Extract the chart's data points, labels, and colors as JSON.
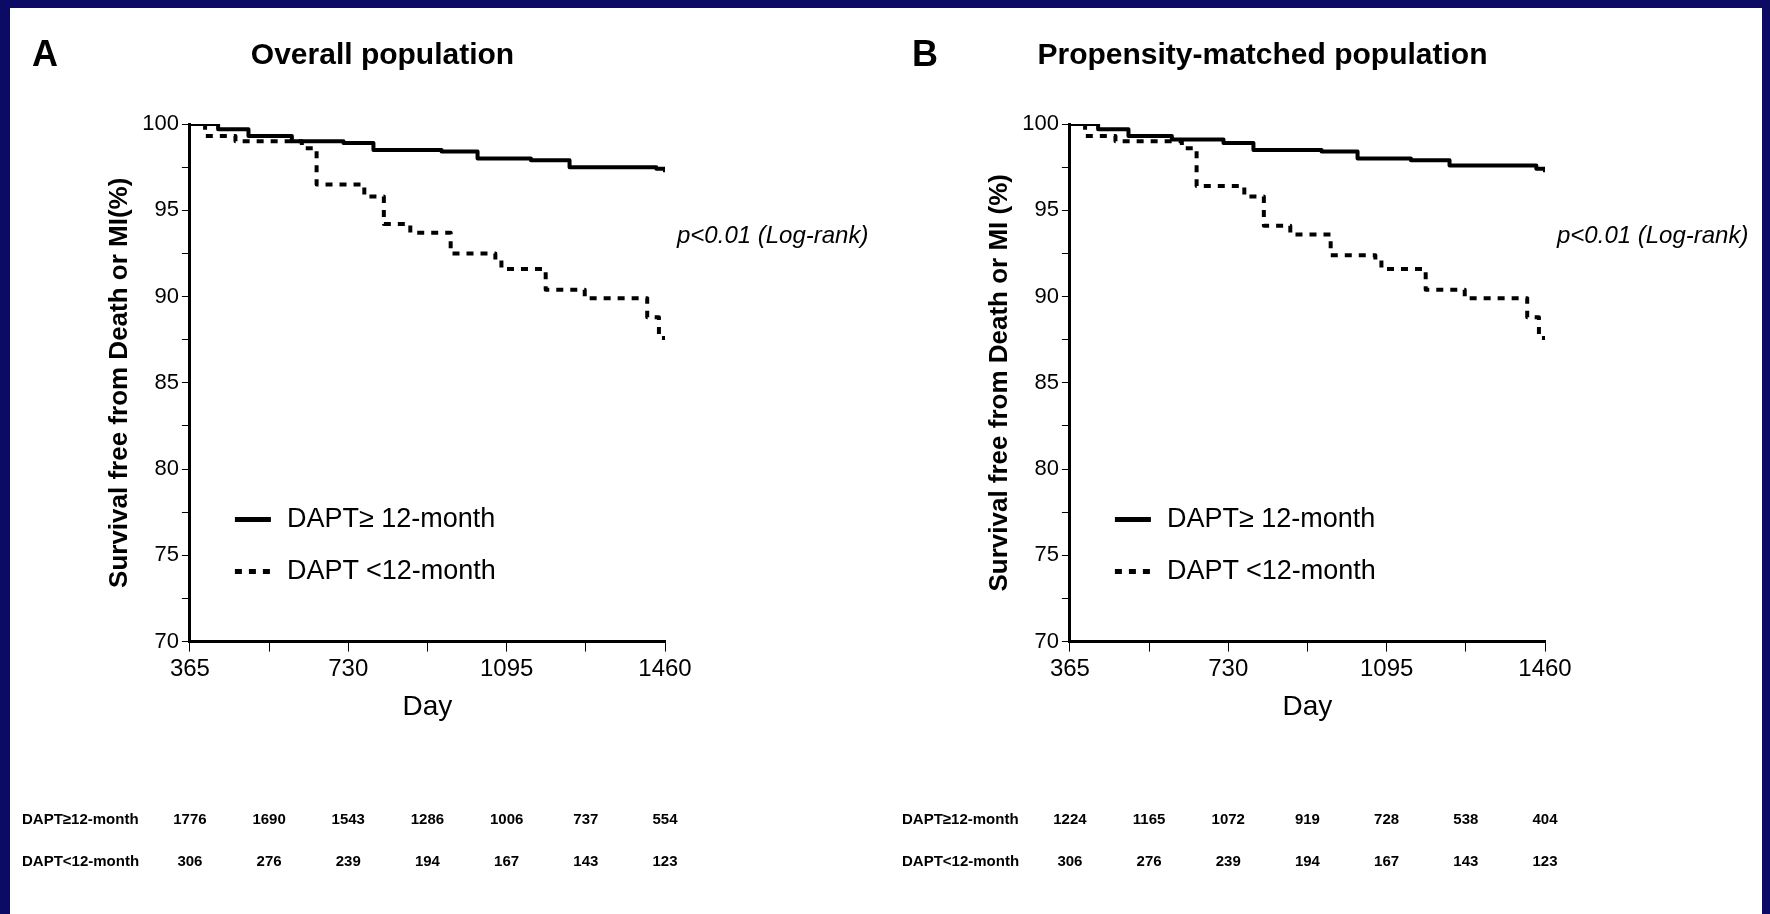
{
  "chart_data": [
    {
      "type": "step",
      "title": "Overall population",
      "xlabel": "Day",
      "ylabel": "Survival free from Death or MI(%)",
      "xlim": [
        365,
        1460
      ],
      "ylim": [
        70,
        100
      ],
      "xticks": [
        365,
        {
          "value": 547.5,
          "label": null
        },
        730,
        {
          "value": 912.5,
          "label": null
        },
        1095,
        {
          "value": 1277.5,
          "label": null
        },
        1460
      ],
      "yticks": [
        70,
        {
          "value": 72.5,
          "label": null
        },
        75,
        {
          "value": 77.5,
          "label": null
        },
        80,
        {
          "value": 82.5,
          "label": null
        },
        85,
        {
          "value": 87.5,
          "label": null
        },
        90,
        {
          "value": 92.5,
          "label": null
        },
        95,
        {
          "value": 97.5,
          "label": null
        },
        100
      ],
      "grid": false,
      "legend": "bottom left",
      "series": [
        {
          "name": "DAPT≥ 12-month",
          "color": "#000000",
          "line_style": "solid",
          "x": [
            365,
            430,
            500,
            600,
            719,
            788,
            945,
            1028,
            1151,
            1240,
            1440,
            1460
          ],
          "values": [
            100,
            99.7,
            99.3,
            99.0,
            98.9,
            98.5,
            98.4,
            98.0,
            97.9,
            97.5,
            97.4,
            97.2
          ]
        },
        {
          "name": "DAPT <12-month",
          "color": "#000000",
          "line_style": "dashed",
          "x": [
            365,
            400,
            470,
            623,
            657,
            767,
            812,
            873,
            966,
            1069,
            1083,
            1185,
            1275,
            1419,
            1446,
            1460
          ],
          "values": [
            100,
            99.3,
            99.0,
            98.6,
            96.5,
            95.8,
            94.2,
            93.7,
            92.5,
            92.1,
            91.6,
            90.4,
            89.9,
            88.8,
            87.6,
            87.6
          ]
        }
      ],
      "annotations": [
        "A",
        "p<0.01 (Log-rank)",
        "DAPT≥12-month 1776 1690 1543 1286 1006 737 554",
        "DAPT<12-month 306 276 239 194 167 143 123"
      ]
    },
    {
      "type": "step",
      "title": "Propensity-matched population",
      "xlabel": "Day",
      "ylabel": "Survival free from Death or MI (%)",
      "xlim": [
        365,
        1460
      ],
      "ylim": [
        70,
        100
      ],
      "xticks": [
        365,
        {
          "value": 547.5,
          "label": null
        },
        730,
        {
          "value": 912.5,
          "label": null
        },
        1095,
        {
          "value": 1277.5,
          "label": null
        },
        1460
      ],
      "yticks": [
        70,
        {
          "value": 72.5,
          "label": null
        },
        75,
        {
          "value": 77.5,
          "label": null
        },
        80,
        {
          "value": 82.5,
          "label": null
        },
        85,
        {
          "value": 87.5,
          "label": null
        },
        90,
        {
          "value": 92.5,
          "label": null
        },
        95,
        {
          "value": 97.5,
          "label": null
        },
        100
      ],
      "grid": false,
      "legend": "bottom left",
      "series": [
        {
          "name": "DAPT≥ 12-month",
          "color": "#000000",
          "line_style": "solid",
          "x": [
            365,
            430,
            500,
            600,
            719,
            788,
            945,
            1028,
            1151,
            1240,
            1440,
            1460
          ],
          "values": [
            100,
            99.7,
            99.3,
            99.1,
            98.9,
            98.5,
            98.4,
            98.0,
            97.9,
            97.6,
            97.4,
            97.2
          ]
        },
        {
          "name": "DAPT <12-month",
          "color": "#000000",
          "line_style": "dashed",
          "x": [
            365,
            400,
            470,
            623,
            657,
            767,
            812,
            873,
            966,
            1069,
            1083,
            1185,
            1275,
            1419,
            1446,
            1460
          ],
          "values": [
            100,
            99.3,
            99.0,
            98.6,
            96.4,
            95.8,
            94.1,
            93.6,
            92.4,
            92.1,
            91.6,
            90.4,
            89.9,
            88.8,
            87.6,
            87.6
          ]
        }
      ],
      "annotations": [
        "B",
        "p<0.01 (Log-rank)",
        "DAPT≥12-month 1224 1165 1072 919 728 538 404",
        "DAPT<12-month 306 276 239 194 167 143 123"
      ]
    }
  ]
}
